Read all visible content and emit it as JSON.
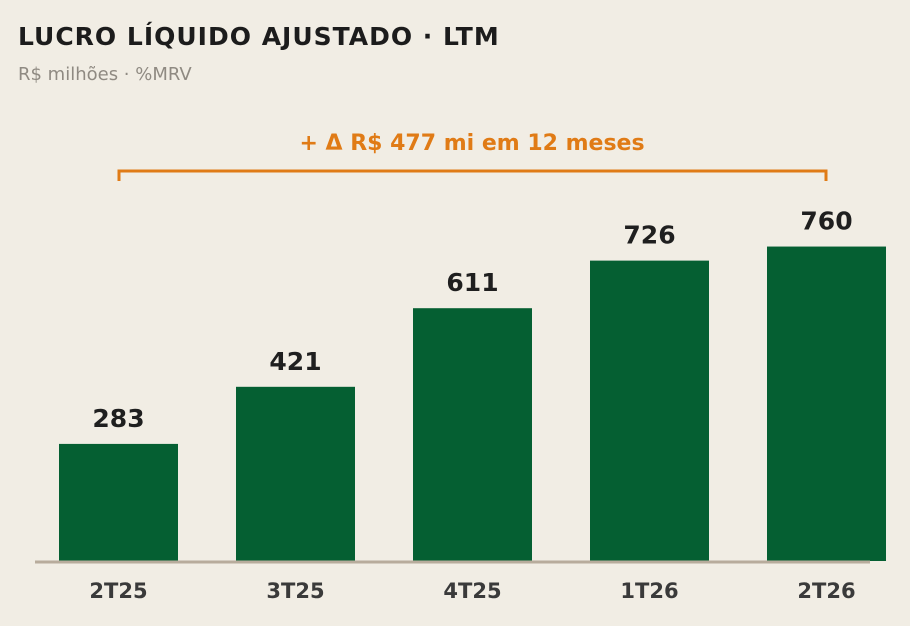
{
  "chart_data": {
    "type": "bar",
    "title": "LUCRO LÍQUIDO AJUSTADO · LTM",
    "subtitle": "R$ milhões · %MRV",
    "annotation": "+ Δ R$ 477 mi em 12 meses",
    "categories": [
      "2T25",
      "3T25",
      "4T25",
      "1T26",
      "2T26"
    ],
    "values": [
      283,
      421,
      611,
      726,
      760
    ],
    "color": "#055f32",
    "ylim": [
      0,
      800
    ]
  }
}
